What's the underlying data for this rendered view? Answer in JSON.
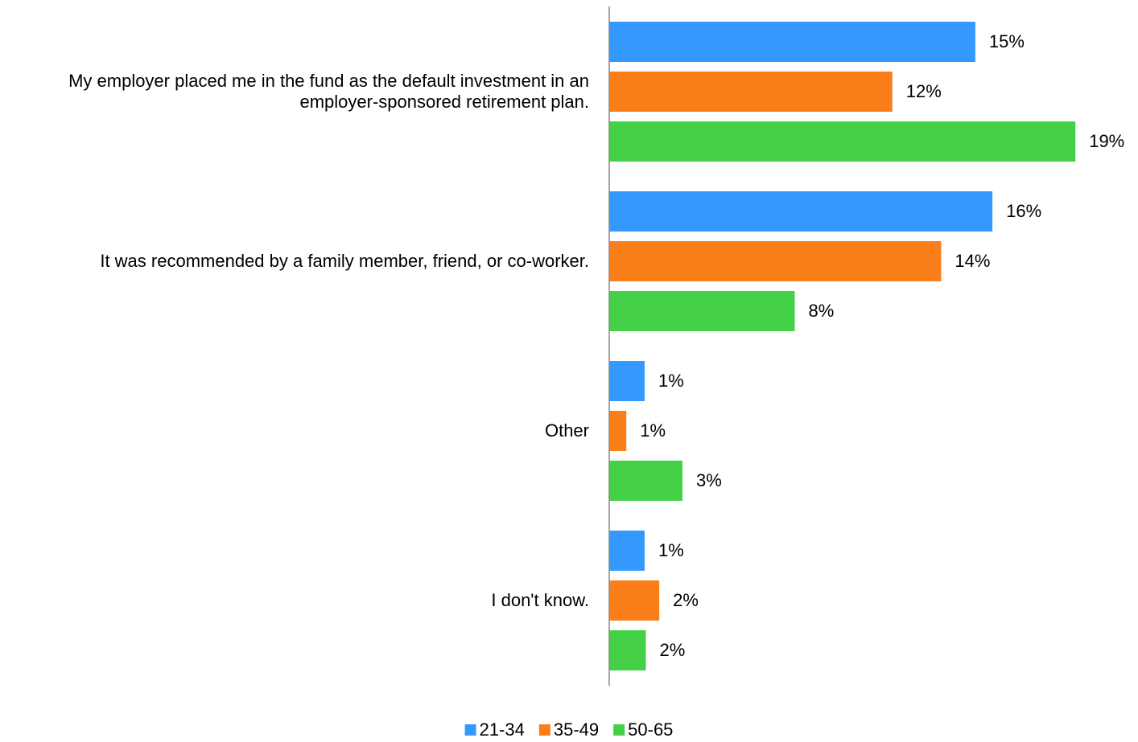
{
  "chart_data": {
    "type": "bar",
    "orientation": "horizontal",
    "categories": [
      "My employer placed me in the fund as the default investment in an employer-sponsored retirement plan.",
      "It was recommended by a family member, friend, or co-worker.",
      "Other",
      "I don't know."
    ],
    "series": [
      {
        "name": "21-34",
        "color": "#3399ff",
        "values": [
          15.0,
          15.7,
          1.45,
          1.45
        ],
        "value_labels": [
          "15%",
          "16%",
          "1%",
          "1%"
        ]
      },
      {
        "name": "35-49",
        "color": "#fa7e1a",
        "values": [
          11.6,
          13.6,
          0.7,
          2.05
        ],
        "value_labels": [
          "12%",
          "14%",
          "1%",
          "2%"
        ]
      },
      {
        "name": "50-65",
        "color": "#44d147",
        "values": [
          19.1,
          7.6,
          3.0,
          1.5
        ],
        "value_labels": [
          "19%",
          "8%",
          "3%",
          "2%"
        ]
      }
    ],
    "xlim": [
      0,
      21.5
    ],
    "legend": "bottom"
  }
}
